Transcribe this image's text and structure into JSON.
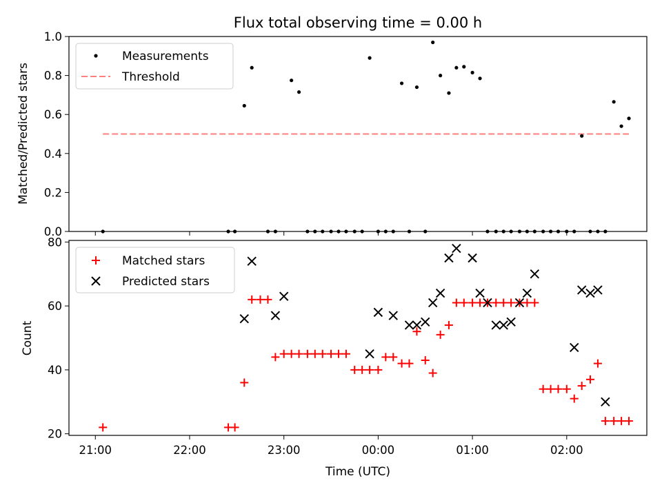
{
  "title": "Flux total observing time = 0.00 h",
  "top": {
    "ylabel": "Matched/Predicted stars",
    "legend": [
      "Measurements",
      "Threshold"
    ]
  },
  "bottom": {
    "ylabel": "Count",
    "xlabel": "Time (UTC)",
    "legend": [
      "Matched stars",
      "Predicted stars"
    ]
  },
  "colors": {
    "measurement": "#000000",
    "threshold": "#ff7f7f",
    "matched": "#ff0000",
    "predicted": "#000000"
  },
  "chart_data": [
    {
      "type": "scatter",
      "title": "Flux total observing time = 0.00 h",
      "xlabel": "",
      "ylabel": "Matched/Predicted stars",
      "x_unit": "hours from 21:00 UTC",
      "xlim": [
        -0.28,
        5.85
      ],
      "ylim": [
        0.0,
        1.0
      ],
      "yticks": [
        0.0,
        0.2,
        0.4,
        0.6,
        0.8,
        1.0
      ],
      "grid": false,
      "legend_position": "top-left",
      "series": [
        {
          "name": "Measurements",
          "marker": "point",
          "x": [
            0.08,
            1.41,
            1.48,
            1.58,
            1.66,
            1.83,
            1.91,
            2.08,
            2.16,
            2.25,
            2.33,
            2.41,
            2.5,
            2.58,
            2.66,
            2.75,
            2.83,
            2.91,
            3.0,
            3.08,
            3.16,
            3.25,
            3.33,
            3.41,
            3.5,
            3.58,
            3.66,
            3.75,
            3.83,
            3.91,
            4.0,
            4.08,
            4.16,
            4.25,
            4.33,
            4.41,
            4.5,
            4.58,
            4.66,
            4.75,
            4.83,
            4.91,
            5.0,
            5.08,
            5.16,
            5.25,
            5.33,
            5.41,
            5.5,
            5.58,
            5.66
          ],
          "y": [
            0.0,
            0.0,
            0.0,
            0.645,
            0.84,
            0.0,
            0.0,
            0.775,
            0.715,
            0.0,
            0.0,
            0.0,
            0.0,
            0.0,
            0.0,
            0.0,
            0.0,
            0.89,
            0.0,
            0.0,
            0.0,
            0.76,
            0.0,
            0.74,
            0.0,
            0.97,
            0.8,
            0.71,
            0.84,
            0.845,
            0.815,
            0.785,
            0.0,
            0.0,
            0.0,
            0.0,
            0.0,
            0.0,
            0.0,
            0.0,
            0.0,
            0.0,
            0.0,
            0.0,
            0.49,
            0.0,
            0.0,
            0.0,
            0.665,
            0.54,
            0.58
          ]
        },
        {
          "name": "Threshold",
          "style": "dashed",
          "x": [
            0.08,
            5.66
          ],
          "y": [
            0.5,
            0.5
          ]
        }
      ]
    },
    {
      "type": "scatter",
      "title": "",
      "xlabel": "Time (UTC)",
      "ylabel": "Count",
      "x_unit": "hours from 21:00 UTC",
      "xlim": [
        -0.28,
        5.85
      ],
      "ylim": [
        19.5,
        80.5
      ],
      "x_ticks": [
        "21:00",
        "22:00",
        "23:00",
        "00:00",
        "01:00",
        "02:00"
      ],
      "yticks": [
        20,
        40,
        60,
        80
      ],
      "grid": false,
      "legend_position": "top-left",
      "series": [
        {
          "name": "Matched stars",
          "marker": "plus",
          "x": [
            0.08,
            1.41,
            1.48,
            1.58,
            1.66,
            1.75,
            1.83,
            1.91,
            2.0,
            2.08,
            2.16,
            2.25,
            2.33,
            2.41,
            2.5,
            2.58,
            2.66,
            2.75,
            2.83,
            2.91,
            3.0,
            3.08,
            3.16,
            3.25,
            3.33,
            3.41,
            3.5,
            3.58,
            3.66,
            3.75,
            3.83,
            3.91,
            4.0,
            4.08,
            4.16,
            4.25,
            4.33,
            4.41,
            4.5,
            4.58,
            4.66,
            4.75,
            4.83,
            4.91,
            5.0,
            5.08,
            5.16,
            5.25,
            5.33,
            5.41,
            5.5,
            5.58,
            5.66
          ],
          "y": [
            22,
            22,
            22,
            36,
            62,
            62,
            62,
            44,
            45,
            45,
            45,
            45,
            45,
            45,
            45,
            45,
            45,
            40,
            40,
            40,
            40,
            44,
            44,
            42,
            42,
            52,
            43,
            39,
            51,
            54,
            61,
            61,
            61,
            61,
            61,
            61,
            61,
            61,
            61,
            61,
            61,
            34,
            34,
            34,
            34,
            31,
            35,
            37,
            42,
            24,
            24,
            24,
            24
          ]
        },
        {
          "name": "Predicted stars",
          "marker": "x",
          "x": [
            1.58,
            1.66,
            1.91,
            2.0,
            2.91,
            3.0,
            3.16,
            3.33,
            3.41,
            3.5,
            3.58,
            3.66,
            3.75,
            3.83,
            4.0,
            4.08,
            4.16,
            4.25,
            4.33,
            4.41,
            4.5,
            4.58,
            4.66,
            5.08,
            5.16,
            5.25,
            5.33,
            5.41
          ],
          "y": [
            56,
            74,
            57,
            63,
            45,
            58,
            57,
            54,
            54,
            55,
            61,
            64,
            75,
            78,
            75,
            64,
            61,
            54,
            54,
            55,
            61,
            64,
            70,
            47,
            65,
            64,
            65,
            30
          ]
        }
      ]
    }
  ]
}
